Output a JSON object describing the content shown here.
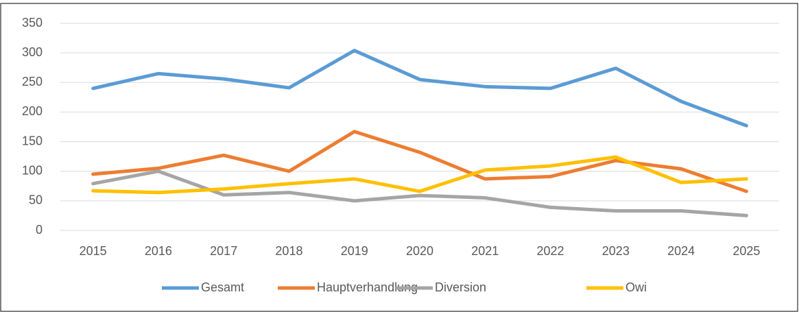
{
  "chart_data": {
    "type": "line",
    "categories": [
      "2015",
      "2016",
      "2017",
      "2018",
      "2019",
      "2020",
      "2021",
      "2022",
      "2023",
      "2024",
      "2025"
    ],
    "series": [
      {
        "name": "Gesamt",
        "color": "#5b9bd5",
        "values": [
          240,
          265,
          256,
          241,
          304,
          255,
          243,
          240,
          274,
          218,
          177
        ]
      },
      {
        "name": "Hauptverhandlung",
        "color": "#ed7d31",
        "values": [
          95,
          105,
          127,
          100,
          167,
          132,
          87,
          91,
          118,
          104,
          66
        ]
      },
      {
        "name": "Diversion",
        "color": "#a5a5a5",
        "values": [
          79,
          100,
          60,
          64,
          50,
          59,
          55,
          39,
          33,
          33,
          25
        ]
      },
      {
        "name": "Owi",
        "color": "#ffc000",
        "values": [
          67,
          64,
          70,
          79,
          87,
          66,
          102,
          109,
          124,
          81,
          87
        ]
      }
    ],
    "ylim": [
      0,
      350
    ],
    "yticks": [
      0,
      50,
      100,
      150,
      200,
      250,
      300,
      350
    ],
    "grid": true,
    "legend": "bottom"
  }
}
